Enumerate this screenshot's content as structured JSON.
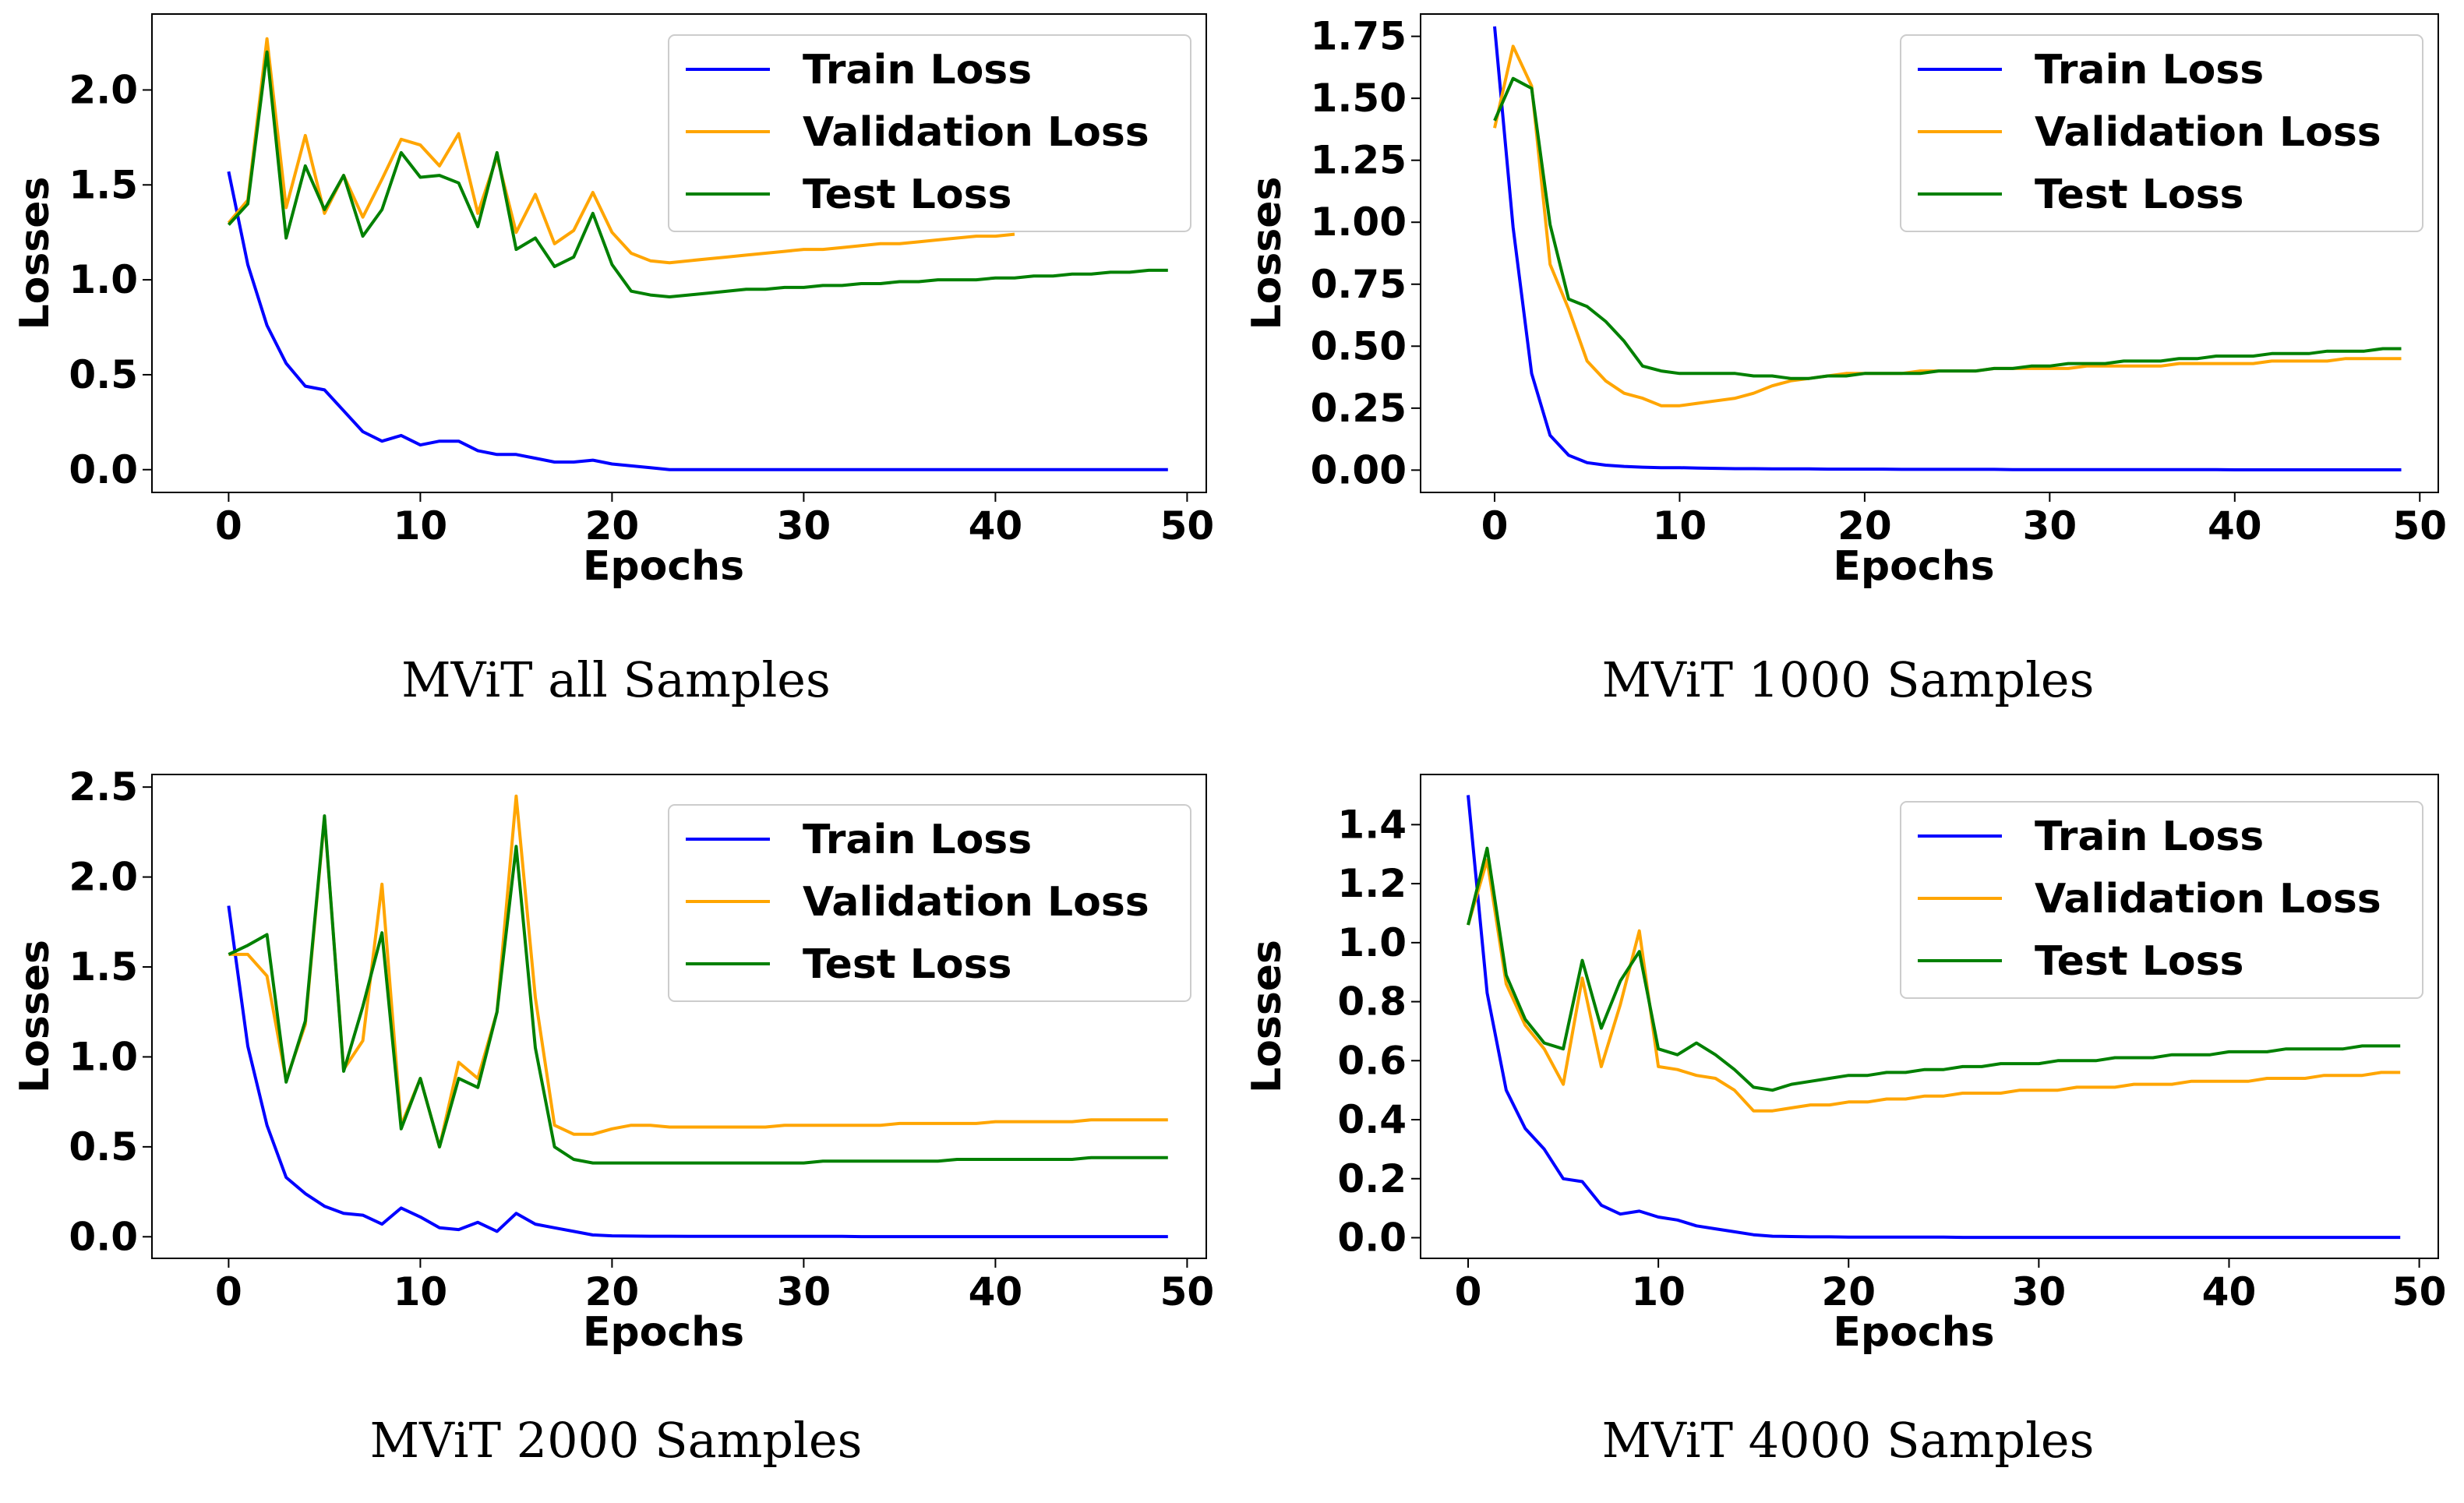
{
  "chart_data": [
    {
      "type": "line",
      "caption": "MViT all Samples",
      "xlabel": "Epochs",
      "ylabel": "Losses",
      "xlim": [
        -4,
        51
      ],
      "ylim": [
        -0.12,
        2.4
      ],
      "xticks": [
        0,
        10,
        20,
        30,
        40,
        50
      ],
      "yticks": [
        0.0,
        0.5,
        1.0,
        1.5,
        2.0
      ],
      "ytick_labels": [
        "0.0",
        "0.5",
        "1.0",
        "1.5",
        "2.0"
      ],
      "xtick_labels": [
        "0",
        "10",
        "20",
        "30",
        "40",
        "50"
      ],
      "legend": [
        "Train Loss",
        "Validation Loss",
        "Test Loss"
      ],
      "legend_position": "top-right",
      "series": [
        {
          "name": "Train Loss",
          "color": "#0000ff",
          "x_start": 0,
          "values": [
            1.57,
            1.08,
            0.76,
            0.56,
            0.44,
            0.42,
            0.31,
            0.2,
            0.15,
            0.18,
            0.13,
            0.15,
            0.15,
            0.1,
            0.08,
            0.08,
            0.06,
            0.04,
            0.04,
            0.05,
            0.03,
            0.02,
            0.01,
            0.0,
            0.0,
            0.0,
            0.0,
            0.0,
            0.0,
            0.0,
            0.0,
            0.0,
            0.0,
            0.0,
            0.0,
            0.0,
            0.0,
            0.0,
            0.0,
            0.0,
            0.0,
            0.0,
            0.0,
            0.0,
            0.0,
            0.0,
            0.0,
            0.0,
            0.0,
            0.0
          ]
        },
        {
          "name": "Validation Loss",
          "color": "#ffa500",
          "x_start": 0,
          "values": [
            1.3,
            1.42,
            2.27,
            1.38,
            1.76,
            1.35,
            1.55,
            1.33,
            1.53,
            1.74,
            1.71,
            1.6,
            1.77,
            1.35,
            1.65,
            1.25,
            1.45,
            1.19,
            1.26,
            1.46,
            1.25,
            1.14,
            1.1,
            1.09,
            1.1,
            1.11,
            1.12,
            1.13,
            1.14,
            1.15,
            1.16,
            1.16,
            1.17,
            1.18,
            1.19,
            1.19,
            1.2,
            1.21,
            1.22,
            1.23,
            1.23,
            1.24
          ]
        },
        {
          "name": "Test Loss",
          "color": "#008000",
          "x_start": 0,
          "values": [
            1.29,
            1.4,
            2.2,
            1.22,
            1.6,
            1.37,
            1.55,
            1.23,
            1.37,
            1.67,
            1.54,
            1.55,
            1.51,
            1.28,
            1.67,
            1.16,
            1.22,
            1.07,
            1.12,
            1.35,
            1.08,
            0.94,
            0.92,
            0.91,
            0.92,
            0.93,
            0.94,
            0.95,
            0.95,
            0.96,
            0.96,
            0.97,
            0.97,
            0.98,
            0.98,
            0.99,
            0.99,
            1.0,
            1.0,
            1.0,
            1.01,
            1.01,
            1.02,
            1.02,
            1.03,
            1.03,
            1.04,
            1.04,
            1.05,
            1.05
          ]
        }
      ]
    },
    {
      "type": "line",
      "caption": "MViT 1000 Samples",
      "xlabel": "Epochs",
      "ylabel": "Losses",
      "xlim": [
        -4,
        51
      ],
      "ylim": [
        -0.09,
        1.84
      ],
      "xticks": [
        0,
        10,
        20,
        30,
        40,
        50
      ],
      "yticks": [
        0.0,
        0.25,
        0.5,
        0.75,
        1.0,
        1.25,
        1.5,
        1.75
      ],
      "ytick_labels": [
        "0.00",
        "0.25",
        "0.50",
        "0.75",
        "1.00",
        "1.25",
        "1.50",
        "1.75"
      ],
      "xtick_labels": [
        "0",
        "10",
        "20",
        "30",
        "40",
        "50"
      ],
      "legend": [
        "Train Loss",
        "Validation Loss",
        "Test Loss"
      ],
      "legend_position": "top-right",
      "series": [
        {
          "name": "Train Loss",
          "color": "#0000ff",
          "x_start": 0,
          "values": [
            1.79,
            0.98,
            0.39,
            0.14,
            0.06,
            0.03,
            0.02,
            0.015,
            0.012,
            0.01,
            0.01,
            0.008,
            0.007,
            0.006,
            0.006,
            0.005,
            0.005,
            0.005,
            0.004,
            0.004,
            0.004,
            0.004,
            0.003,
            0.003,
            0.003,
            0.003,
            0.003,
            0.003,
            0.002,
            0.002,
            0.002,
            0.002,
            0.002,
            0.002,
            0.002,
            0.002,
            0.002,
            0.002,
            0.002,
            0.002,
            0.001,
            0.001,
            0.001,
            0.001,
            0.001,
            0.001,
            0.001,
            0.001,
            0.001,
            0.001
          ]
        },
        {
          "name": "Validation Loss",
          "color": "#ffa500",
          "x_start": 0,
          "values": [
            1.38,
            1.71,
            1.55,
            0.83,
            0.65,
            0.44,
            0.36,
            0.31,
            0.29,
            0.26,
            0.26,
            0.27,
            0.28,
            0.29,
            0.31,
            0.34,
            0.36,
            0.37,
            0.38,
            0.39,
            0.39,
            0.39,
            0.39,
            0.4,
            0.4,
            0.4,
            0.4,
            0.41,
            0.41,
            0.41,
            0.41,
            0.41,
            0.42,
            0.42,
            0.42,
            0.42,
            0.42,
            0.43,
            0.43,
            0.43,
            0.43,
            0.43,
            0.44,
            0.44,
            0.44,
            0.44,
            0.45,
            0.45,
            0.45,
            0.45
          ]
        },
        {
          "name": "Test Loss",
          "color": "#008000",
          "x_start": 0,
          "values": [
            1.41,
            1.58,
            1.54,
            0.99,
            0.69,
            0.66,
            0.6,
            0.52,
            0.42,
            0.4,
            0.39,
            0.39,
            0.39,
            0.39,
            0.38,
            0.38,
            0.37,
            0.37,
            0.38,
            0.38,
            0.39,
            0.39,
            0.39,
            0.39,
            0.4,
            0.4,
            0.4,
            0.41,
            0.41,
            0.42,
            0.42,
            0.43,
            0.43,
            0.43,
            0.44,
            0.44,
            0.44,
            0.45,
            0.45,
            0.46,
            0.46,
            0.46,
            0.47,
            0.47,
            0.47,
            0.48,
            0.48,
            0.48,
            0.49,
            0.49
          ]
        }
      ]
    },
    {
      "type": "line",
      "caption": "MViT 2000 Samples",
      "xlabel": "Epochs",
      "ylabel": "Losses",
      "xlim": [
        -4,
        51
      ],
      "ylim": [
        -0.12,
        2.57
      ],
      "xticks": [
        0,
        10,
        20,
        30,
        40,
        50
      ],
      "yticks": [
        0.0,
        0.5,
        1.0,
        1.5,
        2.0,
        2.5
      ],
      "ytick_labels": [
        "0.0",
        "0.5",
        "1.0",
        "1.5",
        "2.0",
        "2.5"
      ],
      "xtick_labels": [
        "0",
        "10",
        "20",
        "30",
        "40",
        "50"
      ],
      "legend": [
        "Train Loss",
        "Validation Loss",
        "Test Loss"
      ],
      "legend_position": "top-right",
      "series": [
        {
          "name": "Train Loss",
          "color": "#0000ff",
          "x_start": 0,
          "values": [
            1.84,
            1.06,
            0.62,
            0.33,
            0.24,
            0.17,
            0.13,
            0.12,
            0.07,
            0.16,
            0.11,
            0.05,
            0.04,
            0.08,
            0.03,
            0.13,
            0.07,
            0.05,
            0.03,
            0.01,
            0.005,
            0.004,
            0.003,
            0.003,
            0.002,
            0.002,
            0.002,
            0.002,
            0.002,
            0.002,
            0.002,
            0.002,
            0.002,
            0.001,
            0.001,
            0.001,
            0.001,
            0.001,
            0.001,
            0.001,
            0.001,
            0.001,
            0.001,
            0.001,
            0.001,
            0.001,
            0.001,
            0.001,
            0.001,
            0.001
          ]
        },
        {
          "name": "Validation Loss",
          "color": "#ffa500",
          "x_start": 0,
          "values": [
            1.57,
            1.57,
            1.45,
            0.87,
            1.18,
            2.33,
            0.93,
            1.09,
            1.96,
            0.62,
            0.88,
            0.5,
            0.97,
            0.88,
            1.25,
            2.45,
            1.33,
            0.62,
            0.57,
            0.57,
            0.6,
            0.62,
            0.62,
            0.61,
            0.61,
            0.61,
            0.61,
            0.61,
            0.61,
            0.62,
            0.62,
            0.62,
            0.62,
            0.62,
            0.62,
            0.63,
            0.63,
            0.63,
            0.63,
            0.63,
            0.64,
            0.64,
            0.64,
            0.64,
            0.64,
            0.65,
            0.65,
            0.65,
            0.65,
            0.65
          ]
        },
        {
          "name": "Test Loss",
          "color": "#008000",
          "x_start": 0,
          "values": [
            1.57,
            1.62,
            1.68,
            0.86,
            1.2,
            2.34,
            0.92,
            1.28,
            1.69,
            0.6,
            0.88,
            0.5,
            0.88,
            0.83,
            1.25,
            2.17,
            1.05,
            0.5,
            0.43,
            0.41,
            0.41,
            0.41,
            0.41,
            0.41,
            0.41,
            0.41,
            0.41,
            0.41,
            0.41,
            0.41,
            0.41,
            0.42,
            0.42,
            0.42,
            0.42,
            0.42,
            0.42,
            0.42,
            0.43,
            0.43,
            0.43,
            0.43,
            0.43,
            0.43,
            0.43,
            0.44,
            0.44,
            0.44,
            0.44,
            0.44
          ]
        }
      ]
    },
    {
      "type": "line",
      "caption": "MViT 4000 Samples",
      "xlabel": "Epochs",
      "ylabel": "Losses",
      "xlim": [
        -2.5,
        51
      ],
      "ylim": [
        -0.07,
        1.57
      ],
      "xticks": [
        0,
        10,
        20,
        30,
        40,
        50
      ],
      "yticks": [
        0.0,
        0.2,
        0.4,
        0.6,
        0.8,
        1.0,
        1.2,
        1.4
      ],
      "ytick_labels": [
        "0.0",
        "0.2",
        "0.4",
        "0.6",
        "0.8",
        "1.0",
        "1.2",
        "1.4"
      ],
      "xtick_labels": [
        "0",
        "10",
        "20",
        "30",
        "40",
        "50"
      ],
      "legend": [
        "Train Loss",
        "Validation Loss",
        "Test Loss"
      ],
      "legend_position": "top-right",
      "series": [
        {
          "name": "Train Loss",
          "color": "#0000ff",
          "x_start": 0,
          "values": [
            1.5,
            0.83,
            0.5,
            0.37,
            0.3,
            0.2,
            0.19,
            0.11,
            0.08,
            0.09,
            0.07,
            0.06,
            0.04,
            0.03,
            0.02,
            0.01,
            0.005,
            0.004,
            0.003,
            0.003,
            0.002,
            0.002,
            0.002,
            0.002,
            0.002,
            0.002,
            0.001,
            0.001,
            0.001,
            0.001,
            0.001,
            0.001,
            0.001,
            0.001,
            0.001,
            0.001,
            0.001,
            0.001,
            0.001,
            0.001,
            0.001,
            0.001,
            0.001,
            0.001,
            0.001,
            0.001,
            0.001,
            0.001,
            0.001,
            0.001
          ]
        },
        {
          "name": "Validation Loss",
          "color": "#ffa500",
          "x_start": 0,
          "values": [
            1.06,
            1.28,
            0.86,
            0.72,
            0.64,
            0.52,
            0.88,
            0.58,
            0.79,
            1.04,
            0.58,
            0.57,
            0.55,
            0.54,
            0.5,
            0.43,
            0.43,
            0.44,
            0.45,
            0.45,
            0.46,
            0.46,
            0.47,
            0.47,
            0.48,
            0.48,
            0.49,
            0.49,
            0.49,
            0.5,
            0.5,
            0.5,
            0.51,
            0.51,
            0.51,
            0.52,
            0.52,
            0.52,
            0.53,
            0.53,
            0.53,
            0.53,
            0.54,
            0.54,
            0.54,
            0.55,
            0.55,
            0.55,
            0.56,
            0.56
          ]
        },
        {
          "name": "Test Loss",
          "color": "#008000",
          "x_start": 0,
          "values": [
            1.06,
            1.32,
            0.89,
            0.74,
            0.66,
            0.64,
            0.94,
            0.71,
            0.87,
            0.97,
            0.64,
            0.62,
            0.66,
            0.62,
            0.57,
            0.51,
            0.5,
            0.52,
            0.53,
            0.54,
            0.55,
            0.55,
            0.56,
            0.56,
            0.57,
            0.57,
            0.58,
            0.58,
            0.59,
            0.59,
            0.59,
            0.6,
            0.6,
            0.6,
            0.61,
            0.61,
            0.61,
            0.62,
            0.62,
            0.62,
            0.63,
            0.63,
            0.63,
            0.64,
            0.64,
            0.64,
            0.64,
            0.65,
            0.65,
            0.65
          ]
        }
      ]
    }
  ]
}
